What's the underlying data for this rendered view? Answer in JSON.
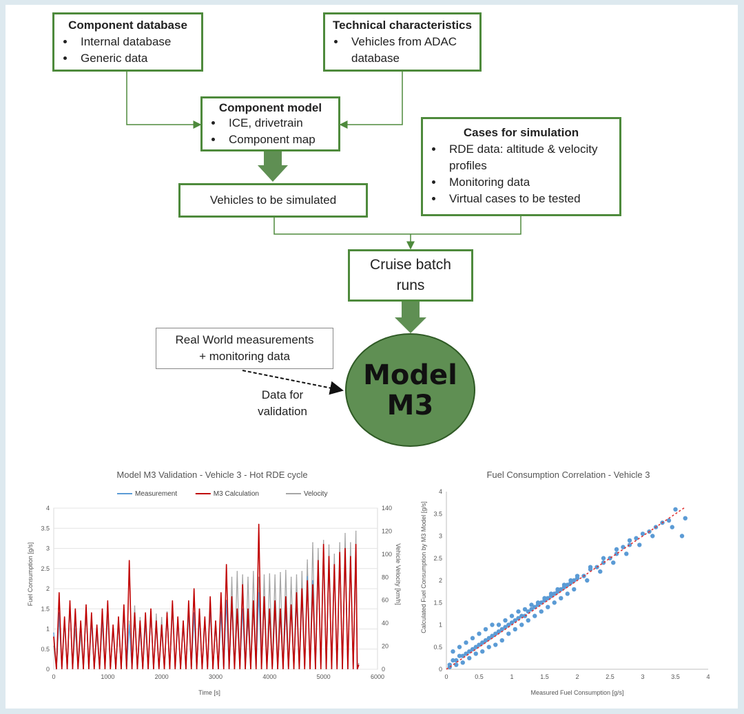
{
  "flow": {
    "component_db": {
      "title": "Component database",
      "items": [
        "Internal database",
        "Generic data"
      ]
    },
    "tech_chars": {
      "title": "Technical characteristics",
      "items": [
        "Vehicles from ADAC database"
      ]
    },
    "component_model": {
      "title": "Component model",
      "items": [
        "ICE, drivetrain",
        "Component map"
      ]
    },
    "cases": {
      "title": "Cases for simulation",
      "items": [
        "RDE data: altitude & velocity profiles",
        "Monitoring data",
        "Virtual cases to be tested"
      ]
    },
    "vehicles": "Vehicles to be simulated",
    "cruise_l1": "Cruise batch",
    "cruise_l2": "runs",
    "real_world_l1": "Real World measurements",
    "real_world_l2": "+ monitoring data",
    "validation_l1": "Data for",
    "validation_l2": "validation",
    "model_l1": "Model",
    "model_l2": "M3",
    "colors": {
      "box_border": "#4e8a3c",
      "arrow": "#5f8f53",
      "circle": "#5f8f53"
    }
  },
  "chart_data": [
    {
      "type": "line",
      "title": "Model M3 Validation - Vehicle 3 - Hot RDE cycle",
      "xlabel": "Time [s]",
      "ylabel": "Fuel Consumption [g/s]",
      "y2label": "Vehicle Velocity [km/h]",
      "xlim": [
        0,
        6000
      ],
      "ylim": [
        0,
        4
      ],
      "y2lim": [
        0,
        140
      ],
      "xticks": [
        "0",
        "1000",
        "2000",
        "3000",
        "4000",
        "5000",
        "6000"
      ],
      "yticks": [
        "0",
        "0.5",
        "1",
        "1.5",
        "2",
        "2.5",
        "3",
        "3.5",
        "4"
      ],
      "y2ticks": [
        "0",
        "20",
        "40",
        "60",
        "80",
        "100",
        "120",
        "140"
      ],
      "legend_position": "top",
      "series": [
        {
          "name": "Measurement",
          "color": "#5b9bd5",
          "x": [
            0,
            100,
            200,
            300,
            400,
            500,
            600,
            700,
            800,
            900,
            1000,
            1100,
            1200,
            1300,
            1400,
            1500,
            1600,
            1700,
            1800,
            1900,
            2000,
            2100,
            2200,
            2300,
            2400,
            2500,
            2600,
            2700,
            2800,
            2900,
            3000,
            3100,
            3200,
            3300,
            3400,
            3500,
            3600,
            3700,
            3800,
            3900,
            4000,
            4100,
            4200,
            4300,
            4400,
            4500,
            4600,
            4700,
            4800,
            4900,
            5000,
            5100,
            5200,
            5300,
            5400,
            5500,
            5600,
            5650
          ],
          "values": [
            0.9,
            1.4,
            1.2,
            1.6,
            1.3,
            1.1,
            1.5,
            1.2,
            1.0,
            1.3,
            1.6,
            1.0,
            1.2,
            1.5,
            1.1,
            1.3,
            1.0,
            1.2,
            1.4,
            1.1,
            1.0,
            1.3,
            1.6,
            1.2,
            1.1,
            1.5,
            1.4,
            1.3,
            1.2,
            1.6,
            1.1,
            1.4,
            1.7,
            1.6,
            1.4,
            1.5,
            1.3,
            1.6,
            1.9,
            1.7,
            1.4,
            1.5,
            1.4,
            1.5,
            1.6,
            1.7,
            1.8,
            2.3,
            2.2,
            2.6,
            2.9,
            2.7,
            2.5,
            2.8,
            2.9,
            2.8,
            2.9,
            0.1
          ]
        },
        {
          "name": "M3 Calculation",
          "color": "#c00000",
          "x": [
            0,
            100,
            200,
            300,
            400,
            500,
            600,
            700,
            800,
            900,
            1000,
            1100,
            1200,
            1300,
            1400,
            1500,
            1600,
            1700,
            1800,
            1900,
            2000,
            2100,
            2200,
            2300,
            2400,
            2500,
            2600,
            2700,
            2800,
            2900,
            3000,
            3100,
            3200,
            3300,
            3400,
            3500,
            3600,
            3700,
            3800,
            3900,
            4000,
            4100,
            4200,
            4300,
            4400,
            4500,
            4600,
            4700,
            4800,
            4900,
            5000,
            5100,
            5200,
            5300,
            5400,
            5500,
            5600,
            5650
          ],
          "values": [
            0.8,
            1.9,
            1.3,
            1.7,
            1.5,
            1.2,
            1.6,
            1.4,
            1.1,
            1.5,
            1.7,
            1.1,
            1.3,
            1.6,
            2.7,
            1.4,
            1.2,
            1.4,
            1.5,
            1.2,
            1.1,
            1.4,
            1.7,
            1.3,
            1.2,
            1.7,
            2.0,
            1.5,
            1.3,
            1.8,
            1.2,
            1.9,
            2.6,
            1.8,
            1.5,
            2.1,
            1.5,
            1.7,
            3.6,
            1.8,
            1.5,
            1.7,
            1.5,
            1.8,
            1.6,
            1.9,
            2.0,
            2.2,
            2.1,
            2.7,
            3.1,
            2.8,
            2.6,
            2.9,
            3.0,
            2.8,
            3.1,
            0.1
          ]
        },
        {
          "name": "Velocity",
          "color": "#a6a6a6",
          "x": [
            0,
            100,
            200,
            300,
            400,
            500,
            600,
            700,
            800,
            900,
            1000,
            1100,
            1200,
            1300,
            1400,
            1500,
            1600,
            1700,
            1800,
            1900,
            2000,
            2100,
            2200,
            2300,
            2400,
            2500,
            2600,
            2700,
            2800,
            2900,
            3000,
            3100,
            3200,
            3300,
            3400,
            3500,
            3600,
            3700,
            3800,
            3900,
            4000,
            4100,
            4200,
            4300,
            4400,
            4500,
            4600,
            4700,
            4800,
            4900,
            5000,
            5100,
            5200,
            5300,
            5400,
            5500,
            5600,
            5650
          ],
          "values": [
            20,
            45,
            40,
            55,
            35,
            30,
            50,
            45,
            30,
            40,
            48,
            35,
            40,
            50,
            42,
            55,
            45,
            40,
            50,
            48,
            45,
            50,
            52,
            45,
            42,
            50,
            48,
            52,
            45,
            50,
            42,
            50,
            60,
            80,
            85,
            82,
            80,
            85,
            80,
            82,
            83,
            82,
            84,
            86,
            80,
            82,
            85,
            95,
            110,
            105,
            112,
            108,
            100,
            110,
            118,
            110,
            120,
            5
          ]
        }
      ]
    },
    {
      "type": "scatter",
      "title": "Fuel Consumption Correlation - Vehicle 3",
      "xlabel": "Measured Fuel Consumption [g/s]",
      "ylabel": "Calculated Fuel Consumption by M3 Model [g/s]",
      "xlim": [
        0,
        4
      ],
      "ylim": [
        0,
        4
      ],
      "xticks": [
        "0",
        "0.5",
        "1",
        "1.5",
        "2",
        "2.5",
        "3",
        "3.5",
        "4"
      ],
      "yticks": [
        "0",
        "0.5",
        "1",
        "1.5",
        "2",
        "2.5",
        "3",
        "3.5",
        "4"
      ],
      "point_color": "#5b9bd5",
      "trend_color": "#e03030",
      "trend": {
        "x": [
          0,
          3.65
        ],
        "y": [
          0,
          3.65
        ]
      },
      "points": {
        "x": [
          0.05,
          0.1,
          0.15,
          0.2,
          0.25,
          0.3,
          0.35,
          0.4,
          0.45,
          0.5,
          0.55,
          0.6,
          0.65,
          0.7,
          0.75,
          0.8,
          0.85,
          0.9,
          0.95,
          1.0,
          1.05,
          1.1,
          1.15,
          1.2,
          1.25,
          1.3,
          1.35,
          1.4,
          1.45,
          1.5,
          1.55,
          1.6,
          1.65,
          1.7,
          1.75,
          1.8,
          1.85,
          1.9,
          1.95,
          2.0,
          2.1,
          2.2,
          2.3,
          2.4,
          2.5,
          2.6,
          2.7,
          2.8,
          2.9,
          3.0,
          3.1,
          3.2,
          3.3,
          3.4,
          3.5,
          3.6,
          3.65,
          0.1,
          0.2,
          0.3,
          0.4,
          0.5,
          0.6,
          0.7,
          0.8,
          0.9,
          1.0,
          1.1,
          1.2,
          1.3,
          1.4,
          1.5,
          1.6,
          1.7,
          1.8,
          1.9,
          2.0,
          2.2,
          2.4,
          2.6,
          2.8,
          0.05,
          0.15,
          0.25,
          0.35,
          0.45,
          0.55,
          0.65,
          0.75,
          0.85,
          0.95,
          1.05,
          1.15,
          1.25,
          1.35,
          1.45,
          1.55,
          1.65,
          1.75,
          1.85,
          1.95,
          2.15,
          2.35,
          2.55,
          2.75,
          2.95,
          3.15,
          3.45
        ],
        "y": [
          0.1,
          0.2,
          0.2,
          0.3,
          0.3,
          0.35,
          0.4,
          0.45,
          0.5,
          0.55,
          0.6,
          0.65,
          0.7,
          0.75,
          0.8,
          0.85,
          0.9,
          0.95,
          1.0,
          1.05,
          1.1,
          1.15,
          1.2,
          1.2,
          1.3,
          1.35,
          1.4,
          1.45,
          1.5,
          1.55,
          1.6,
          1.65,
          1.7,
          1.75,
          1.8,
          1.85,
          1.9,
          1.95,
          2.0,
          2.05,
          2.1,
          2.25,
          2.3,
          2.4,
          2.5,
          2.6,
          2.75,
          2.8,
          2.95,
          3.05,
          3.1,
          3.2,
          3.3,
          3.35,
          3.6,
          3.0,
          3.4,
          0.4,
          0.5,
          0.6,
          0.7,
          0.8,
          0.9,
          1.0,
          1.0,
          1.1,
          1.2,
          1.3,
          1.35,
          1.45,
          1.5,
          1.6,
          1.7,
          1.8,
          1.9,
          2.0,
          2.1,
          2.3,
          2.5,
          2.7,
          2.9,
          0.05,
          0.1,
          0.15,
          0.25,
          0.35,
          0.4,
          0.5,
          0.55,
          0.65,
          0.8,
          0.9,
          1.0,
          1.1,
          1.2,
          1.3,
          1.4,
          1.5,
          1.6,
          1.7,
          1.8,
          2.0,
          2.2,
          2.4,
          2.6,
          2.8,
          3.0,
          3.2
        ]
      }
    }
  ]
}
